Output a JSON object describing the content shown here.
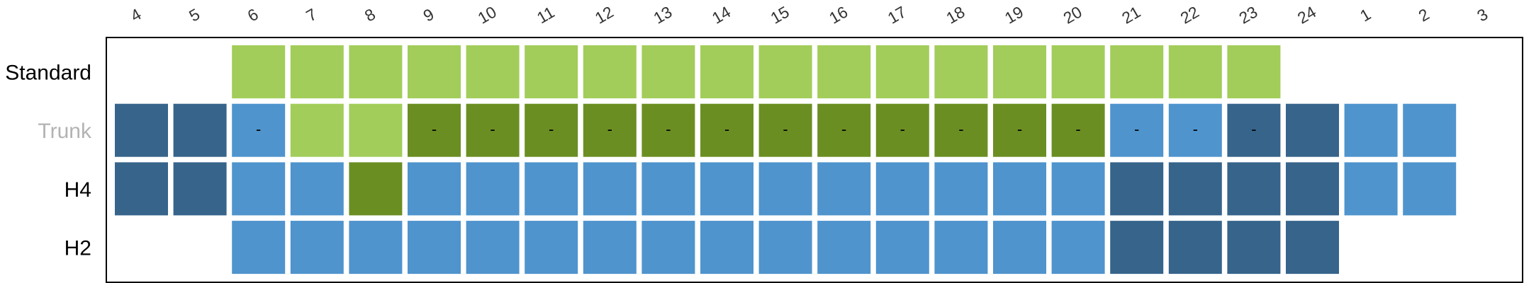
{
  "chart_data": {
    "type": "heatmap",
    "columns": [
      "4",
      "5",
      "6",
      "7",
      "8",
      "9",
      "10",
      "11",
      "12",
      "13",
      "14",
      "15",
      "16",
      "17",
      "18",
      "19",
      "20",
      "21",
      "22",
      "23",
      "24",
      "1",
      "2",
      "3"
    ],
    "rows": [
      {
        "label": "Standard",
        "label_color": "#000000",
        "cells": [
          "",
          "",
          "L",
          "L",
          "L",
          "L",
          "L",
          "L",
          "L",
          "L",
          "L",
          "L",
          "L",
          "L",
          "L",
          "L",
          "L",
          "L",
          "L",
          "L",
          "",
          "",
          "",
          ""
        ],
        "marks": [
          "",
          "",
          "",
          "",
          "",
          "",
          "",
          "",
          "",
          "",
          "",
          "",
          "",
          "",
          "",
          "",
          "",
          "",
          "",
          "",
          "",
          "",
          "",
          ""
        ]
      },
      {
        "label": "Trunk",
        "label_color": "#b3b3b3",
        "cells": [
          "N",
          "N",
          "B",
          "L",
          "L",
          "G",
          "G",
          "G",
          "G",
          "G",
          "G",
          "G",
          "G",
          "G",
          "G",
          "G",
          "G",
          "B",
          "B",
          "N",
          "N",
          "B",
          "B",
          ""
        ],
        "marks": [
          "",
          "",
          "-",
          "",
          "",
          "-",
          "-",
          "-",
          "-",
          "-",
          "-",
          "-",
          "-",
          "-",
          "-",
          "-",
          "-",
          "-",
          "-",
          "-",
          "",
          "",
          "",
          ""
        ]
      },
      {
        "label": "H4",
        "label_color": "#000000",
        "cells": [
          "N",
          "N",
          "B",
          "B",
          "G",
          "B",
          "B",
          "B",
          "B",
          "B",
          "B",
          "B",
          "B",
          "B",
          "B",
          "B",
          "B",
          "N",
          "N",
          "N",
          "N",
          "B",
          "B",
          ""
        ],
        "marks": [
          "",
          "",
          "",
          "",
          "",
          "",
          "",
          "",
          "",
          "",
          "",
          "",
          "",
          "",
          "",
          "",
          "",
          "",
          "",
          "",
          "",
          "",
          "",
          ""
        ]
      },
      {
        "label": "H2",
        "label_color": "#000000",
        "cells": [
          "",
          "",
          "B",
          "B",
          "B",
          "B",
          "B",
          "B",
          "B",
          "B",
          "B",
          "B",
          "B",
          "B",
          "B",
          "B",
          "B",
          "N",
          "N",
          "N",
          "N",
          "",
          "",
          ""
        ],
        "marks": [
          "",
          "",
          "",
          "",
          "",
          "",
          "",
          "",
          "",
          "",
          "",
          "",
          "",
          "",
          "",
          "",
          "",
          "",
          "",
          "",
          "",
          "",
          "",
          ""
        ]
      }
    ],
    "colors": {
      "L": "#a2cd5a",
      "G": "#6b8e23",
      "B": "#4f94cd",
      "N": "#36648b",
      "frame": "#000000"
    },
    "legend": "none"
  }
}
